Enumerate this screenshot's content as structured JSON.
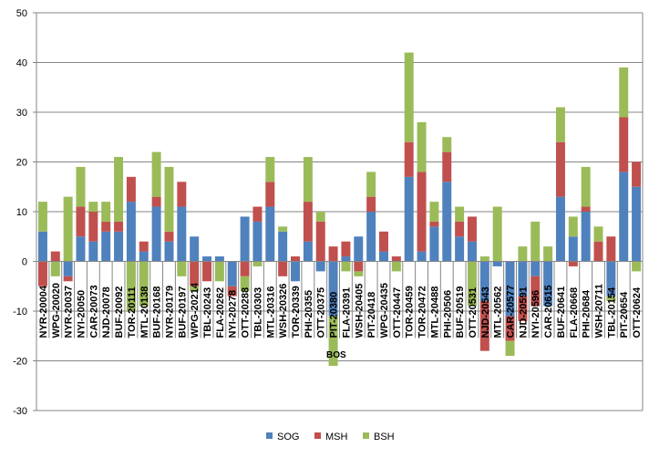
{
  "chart_data": {
    "type": "bar",
    "stacked": true,
    "title": "",
    "xlabel": "",
    "ylabel": "",
    "ylim": [
      -30,
      50
    ],
    "yticks": [
      -30,
      -20,
      -10,
      0,
      10,
      20,
      30,
      40,
      50
    ],
    "grid": true,
    "legend_position": "bottom",
    "annotation": "BOS",
    "categories": [
      "NYR-20004",
      "WPG-20020",
      "NYR-20037",
      "NYI-20050",
      "CAR-20073",
      "NJD-20078",
      "BUF-20092",
      "TOR-20111",
      "MTL-20138",
      "BUF-20168",
      "NYR-20179",
      "BUF-20197",
      "WPG-20214",
      "TBL-20243",
      "FLA-20262",
      "NYI-20278",
      "OTT-20288",
      "TBL-20303",
      "MTL-20316",
      "WSH-20326",
      "TOR-20339",
      "PHI-20355",
      "OTT-20375",
      "PIT-20380",
      "FLA-20391",
      "WSH-20405",
      "PIT-20418",
      "WPG-20435",
      "OTT-20447",
      "TOR-20459",
      "TOR-20472",
      "MTL-20488",
      "PHI-20506",
      "BUF-20519",
      "OTT-20531",
      "NJD-20543",
      "MTL-20562",
      "CAR-20577",
      "NJD-20591",
      "NYI-20596",
      "CAR-20615",
      "BUF-20641",
      "FLA-20668",
      "PHI-20684",
      "WSH-20711",
      "TBL-20154",
      "PIT-20654",
      "OTT-20624"
    ],
    "series": [
      {
        "name": "SOG",
        "color": "#4f81bd",
        "values": [
          6,
          0,
          -3,
          5,
          4,
          6,
          6,
          12,
          2,
          11,
          4,
          11,
          5,
          1,
          1,
          -5,
          9,
          8,
          11,
          6,
          -4,
          4,
          -2,
          -11,
          1,
          5,
          10,
          2,
          0,
          17,
          2,
          7,
          16,
          5,
          4,
          -8,
          -1,
          -11,
          -7,
          -3,
          -9,
          13,
          5,
          10,
          0,
          -7,
          18,
          15
        ]
      },
      {
        "name": "MSH",
        "color": "#c0504d",
        "values": [
          -5,
          2,
          -1,
          6,
          6,
          2,
          2,
          5,
          2,
          2,
          2,
          5,
          -5,
          -4,
          0,
          -2,
          -3,
          3,
          5,
          -3,
          1,
          8,
          8,
          3,
          3,
          -2,
          3,
          4,
          1,
          7,
          16,
          1,
          6,
          3,
          5,
          -10,
          0,
          -5,
          -5,
          -6,
          0,
          11,
          -1,
          1,
          4,
          5,
          11,
          5
        ]
      },
      {
        "name": "BSH",
        "color": "#9bbb59",
        "values": [
          6,
          -3,
          13,
          8,
          2,
          4,
          13,
          -10,
          -9,
          9,
          13,
          -3,
          -1,
          0,
          -4,
          0,
          -3,
          -1,
          5,
          1,
          0,
          9,
          2,
          -10,
          -2,
          -1,
          5,
          0,
          -2,
          18,
          10,
          4,
          3,
          3,
          -9,
          1,
          11,
          -3,
          3,
          8,
          3,
          7,
          4,
          8,
          3,
          -1,
          10,
          -2
        ]
      }
    ]
  }
}
